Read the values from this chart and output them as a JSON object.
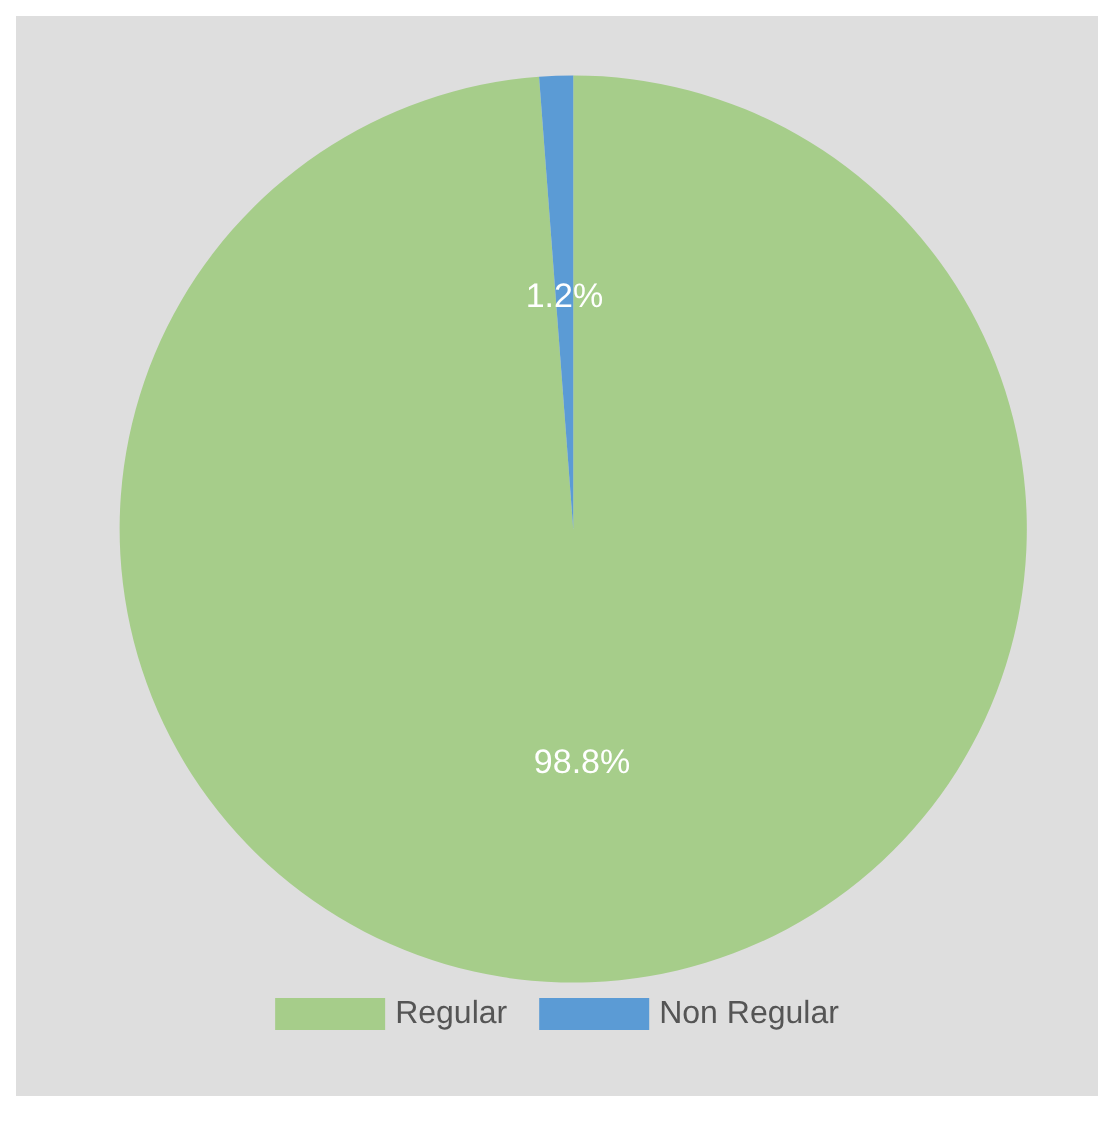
{
  "chart_data": {
    "type": "pie",
    "categories": [
      "Regular",
      "Non Regular"
    ],
    "values": [
      98.8,
      1.2
    ],
    "value_labels": [
      "98.8%",
      "1.2%"
    ],
    "colors": [
      "#a6cd8a",
      "#5b9bd5"
    ],
    "legend": "bottom"
  }
}
